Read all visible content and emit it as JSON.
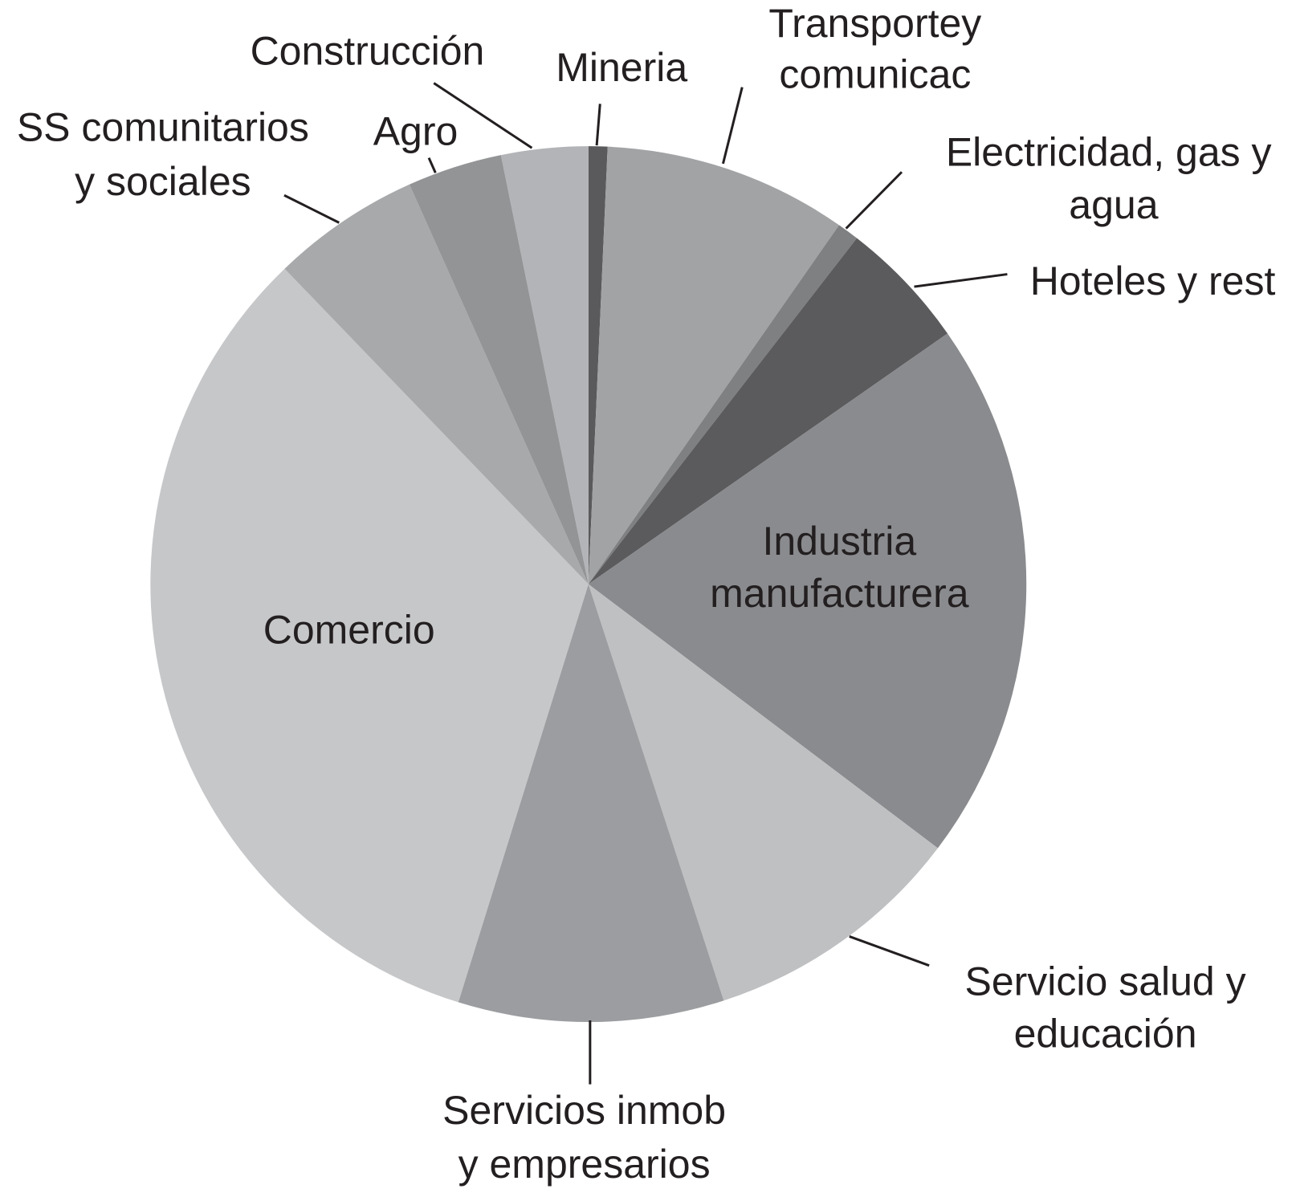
{
  "chart_data": {
    "type": "pie",
    "categories": [
      "Mineria",
      "Transportey\ncomunicac",
      "Electricidad, gas y\nagua",
      "Hoteles y rest",
      "Industria\nmanufacturera",
      "Servicio salud y\neducación",
      "Servicios inmob\ny empresarios",
      "Comercio",
      "SS comunitarios\ny sociales",
      "Agro",
      "Construcción"
    ],
    "values": [
      0.7,
      9,
      0.8,
      4.8,
      20,
      9.7,
      9.8,
      33,
      5.5,
      3.5,
      3.2
    ],
    "colors": [
      "#5a5a5c",
      "#a2a3a5",
      "#7f8082",
      "#5b5b5d",
      "#8a8b8e",
      "#bfc0c2",
      "#9b9da0",
      "#c6c7c9",
      "#a8a9ab",
      "#939496",
      "#b3b4b7"
    ]
  }
}
